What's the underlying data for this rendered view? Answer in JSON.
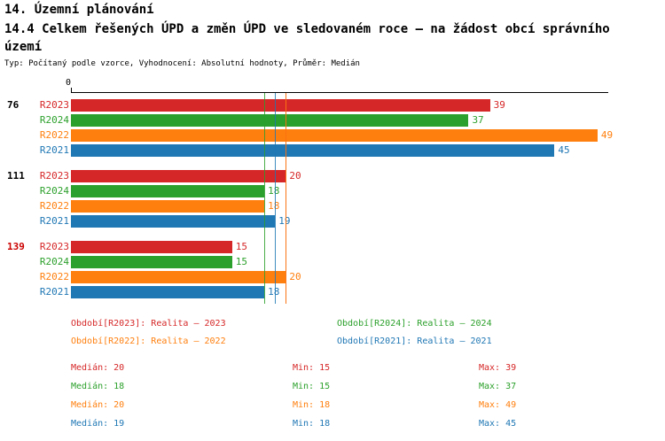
{
  "header": {
    "title": "14. Územní plánování",
    "subtitle": "14.4 Celkem řešených ÚPD a změn ÚPD ve sledovaném roce – na žádost obcí správního území",
    "meta": "Typ: Počítaný podle vzorce, Vyhodnocení: Absolutní hodnoty, Průměr: Medián"
  },
  "colors": {
    "R2023": "#d62728",
    "R2024": "#2ca02c",
    "R2022": "#ff7f0e",
    "R2021": "#1f77b4",
    "group_highlight": "#cc0000",
    "axis": "#000000"
  },
  "chart_data": {
    "type": "bar",
    "orientation": "horizontal",
    "title": "14.4 Celkem řešených ÚPD a změn ÚPD ve sledovaném roce – na žádost obcí správního území",
    "xlim": [
      0,
      50
    ],
    "x_ticks": [
      "0"
    ],
    "grid": false,
    "series_order": [
      "R2023",
      "R2024",
      "R2022",
      "R2021"
    ],
    "groups": [
      {
        "label": "76",
        "highlight": false,
        "values": [
          39,
          37,
          49,
          45
        ]
      },
      {
        "label": "111",
        "highlight": false,
        "values": [
          20,
          18,
          18,
          19
        ]
      },
      {
        "label": "139",
        "highlight": true,
        "values": [
          15,
          15,
          20,
          18
        ]
      }
    ],
    "median_lines": [
      {
        "series": "R2023",
        "value": 20
      },
      {
        "series": "R2024",
        "value": 18
      },
      {
        "series": "R2021",
        "value": 19
      },
      {
        "series": "R2022",
        "value": 20
      }
    ]
  },
  "legend": {
    "rows": [
      [
        {
          "series": "R2023",
          "label": "Období[R2023]: Realita – 2023"
        },
        {
          "series": "R2024",
          "label": "Období[R2024]: Realita – 2024"
        }
      ],
      [
        {
          "series": "R2022",
          "label": "Období[R2022]: Realita – 2022"
        },
        {
          "series": "R2021",
          "label": "Období[R2021]: Realita – 2021"
        }
      ]
    ]
  },
  "stats": [
    {
      "series": "R2023",
      "median": "Medián: 20",
      "min": "Min: 15",
      "max": "Max: 39"
    },
    {
      "series": "R2024",
      "median": "Medián: 18",
      "min": "Min: 15",
      "max": "Max: 37"
    },
    {
      "series": "R2022",
      "median": "Medián: 20",
      "min": "Min: 18",
      "max": "Max: 49"
    },
    {
      "series": "R2021",
      "median": "Medián: 19",
      "min": "Min: 18",
      "max": "Max: 45"
    }
  ]
}
